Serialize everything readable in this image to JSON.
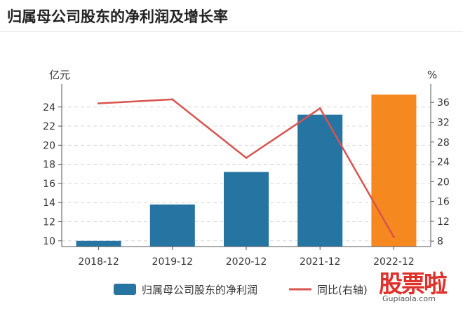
{
  "title": "归属母公司股东的净利润及增长率",
  "chart_data": {
    "type": "bar",
    "categories": [
      "2018-12",
      "2019-12",
      "2020-12",
      "2021-12",
      "2022-12"
    ],
    "series": [
      {
        "name": "归属母公司股东的净利润",
        "kind": "bar",
        "axis": "left",
        "color": "#2574a2",
        "highlight_color": "#f5881e",
        "highlight_index": 4,
        "values": [
          10.0,
          13.8,
          17.2,
          23.2,
          25.3
        ]
      },
      {
        "name": "同比(右轴)",
        "kind": "line",
        "axis": "right",
        "color": "#d9534f",
        "values": [
          35.8,
          36.6,
          24.8,
          34.8,
          8.8
        ]
      }
    ],
    "y_left": {
      "label": "亿元",
      "min": 9.4,
      "max": 26.4,
      "ticks": [
        10,
        12,
        14,
        16,
        18,
        20,
        22,
        24
      ]
    },
    "y_right": {
      "label": "%",
      "min": 6.9,
      "max": 39.7,
      "ticks": [
        8,
        12,
        16,
        20,
        24,
        28,
        32,
        36
      ]
    },
    "grid": true,
    "legend": "bottom"
  },
  "watermark": {
    "main": "股票啦",
    "url": "Gupiaola.com"
  }
}
